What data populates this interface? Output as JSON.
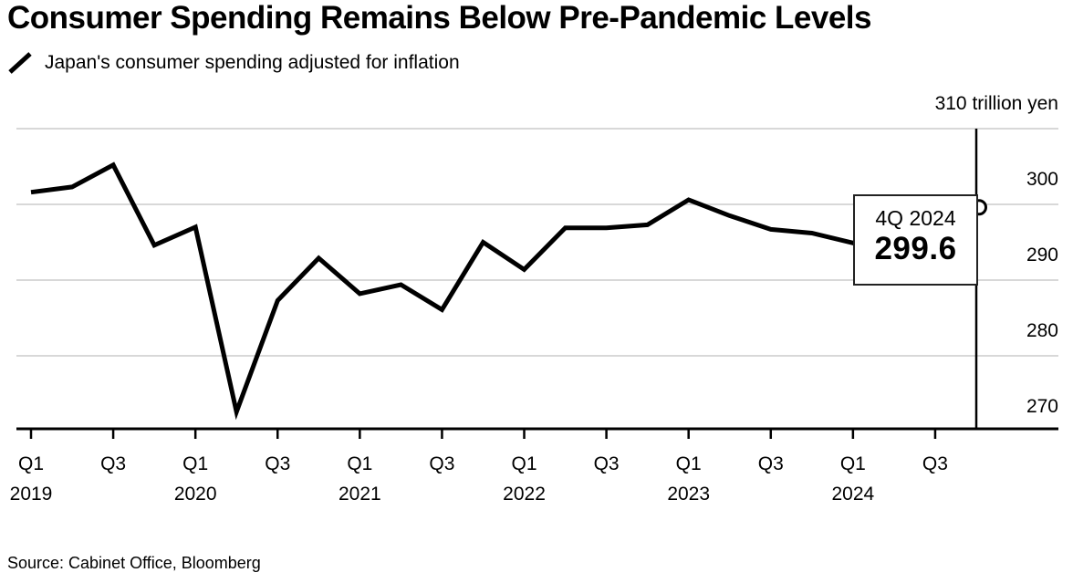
{
  "header": {
    "title": "Consumer Spending Remains Below Pre-Pandemic Levels",
    "legend_label": "Japan's consumer spending adjusted for inflation",
    "legend_marker": "diagonal-line-swatch"
  },
  "chart_data": {
    "type": "line",
    "title": "Consumer Spending Remains Below Pre-Pandemic Levels",
    "unit": "trillion yen",
    "x": [
      "1Q 2019",
      "2Q 2019",
      "3Q 2019",
      "4Q 2019",
      "1Q 2020",
      "2Q 2020",
      "3Q 2020",
      "4Q 2020",
      "1Q 2021",
      "2Q 2021",
      "3Q 2021",
      "4Q 2021",
      "1Q 2022",
      "2Q 2022",
      "3Q 2022",
      "4Q 2022",
      "1Q 2023",
      "2Q 2023",
      "3Q 2023",
      "4Q 2023",
      "1Q 2024",
      "2Q 2024",
      "3Q 2024",
      "4Q 2024"
    ],
    "series": [
      {
        "name": "Japan's consumer spending adjusted for inflation",
        "values": [
          301.6,
          302.3,
          305.2,
          294.6,
          297.0,
          272.6,
          287.3,
          292.9,
          288.2,
          289.4,
          286.1,
          295.0,
          291.4,
          296.9,
          296.9,
          297.3,
          300.6,
          298.5,
          296.7,
          296.2,
          294.9,
          295.9,
          296.7,
          299.6
        ]
      }
    ],
    "ylim": [
      270,
      310
    ],
    "grid": "horizontal",
    "legend_position": "top-left",
    "y_ticks": [
      {
        "value": 310,
        "label": "310 trillion yen"
      },
      {
        "value": 300,
        "label": "300"
      },
      {
        "value": 290,
        "label": "290"
      },
      {
        "value": 280,
        "label": "280"
      },
      {
        "value": 270,
        "label": "270"
      }
    ],
    "x_ticks": [
      {
        "quarter": "Q1",
        "year": "2019"
      },
      {
        "quarter": "Q3",
        "year": ""
      },
      {
        "quarter": "Q1",
        "year": "2020"
      },
      {
        "quarter": "Q3",
        "year": ""
      },
      {
        "quarter": "Q1",
        "year": "2021"
      },
      {
        "quarter": "Q3",
        "year": ""
      },
      {
        "quarter": "Q1",
        "year": "2022"
      },
      {
        "quarter": "Q3",
        "year": ""
      },
      {
        "quarter": "Q1",
        "year": "2023"
      },
      {
        "quarter": "Q3",
        "year": ""
      },
      {
        "quarter": "Q1",
        "year": "2024"
      },
      {
        "quarter": "Q3",
        "year": ""
      }
    ],
    "callout": {
      "label": "4Q 2024",
      "value": "299.6"
    },
    "end_marker": "open-circle",
    "colors": {
      "line": "#000000",
      "grid": "#d8d8d8",
      "axis": "#000000",
      "background": "#ffffff",
      "callout_border": "#222222"
    }
  },
  "footer": {
    "source": "Source: Cabinet Office, Bloomberg"
  }
}
